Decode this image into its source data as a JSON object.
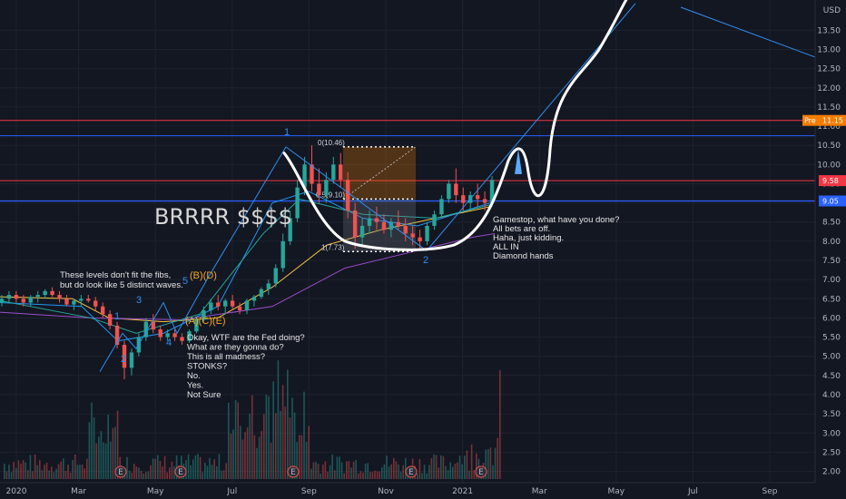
{
  "chart_data": {
    "type": "candlestick",
    "currency": "USD",
    "x_ticks": [
      "2020",
      "Mar",
      "May",
      "Jul",
      "Sep",
      "Nov",
      "2021",
      "Mar",
      "May",
      "Jul",
      "Sep"
    ],
    "y_ticks": [
      2.0,
      2.5,
      3.0,
      3.5,
      4.0,
      4.5,
      5.0,
      5.5,
      6.0,
      6.5,
      7.0,
      7.5,
      8.0,
      8.5,
      9.0,
      9.5,
      10.0,
      10.5,
      11.0,
      11.5,
      12.0,
      12.5,
      13.0,
      13.5
    ],
    "ylim": [
      1.8,
      14.1
    ],
    "price_tags": [
      {
        "label": "Pre",
        "value": "11.15",
        "color": "#f57c00"
      },
      {
        "label": "",
        "value": "9.58",
        "color": "#f23645"
      },
      {
        "label": "",
        "value": "9.05",
        "color": "#2962ff"
      }
    ],
    "horizontal_levels": [
      11.15,
      10.75,
      9.58,
      9.05
    ],
    "annotations": {
      "brrrr": "BRRRR $$$$",
      "levels_note": [
        "These levels don't fit the fibs,",
        "but do look like 5 distinct waves."
      ],
      "fed_note": [
        "Okay, WTF are the Fed doing?",
        "What are they gonna do?",
        "This is all madness?",
        "STONKS?",
        "No.",
        "Yes.",
        "Not Sure"
      ],
      "gamestop_note": [
        "Gamestop, what have you done?",
        "All bets are off.",
        "Haha, just kidding.",
        "ALL IN",
        "Diamond hands"
      ]
    },
    "wave_labels_blue": [
      {
        "text": "1",
        "x": "2020-03-25",
        "y": 6.0
      },
      {
        "text": "2",
        "x": "2020-04-05",
        "y": 5.15
      },
      {
        "text": "3",
        "x": "2020-04-25",
        "y": 6.55
      },
      {
        "text": "4",
        "x": "2020-05-20",
        "y": 5.35
      },
      {
        "text": "5",
        "x": "2020-06-05",
        "y": 7.15
      },
      {
        "text": "1",
        "x": "2020-08-10",
        "y": 10.7
      },
      {
        "text": "2",
        "x": "2020-12-10",
        "y": 7.75
      }
    ],
    "wave_labels_orange": [
      {
        "text": "(B)(D)",
        "x": "2020-06-12",
        "y": 7.3
      },
      {
        "text": "(A)(C)(E)",
        "x": "2020-06-12",
        "y": 6.0
      }
    ],
    "fib": {
      "top_label": "0(10.46)",
      "mid_label": "0.5(9.10)",
      "bottom_label": "1(7.73)",
      "top": 10.46,
      "mid": 9.1,
      "bottom": 7.73
    },
    "markers": [
      "E",
      "E",
      "E",
      "E",
      "E"
    ],
    "series": [
      {
        "kind": "ohlc",
        "values": [
          [
            6.4,
            6.6,
            6.3,
            6.5
          ],
          [
            6.5,
            6.7,
            6.4,
            6.6
          ],
          [
            6.6,
            6.7,
            6.4,
            6.5
          ],
          [
            6.5,
            6.6,
            6.3,
            6.4
          ],
          [
            6.4,
            6.6,
            6.3,
            6.55
          ],
          [
            6.55,
            6.7,
            6.4,
            6.6
          ],
          [
            6.6,
            6.75,
            6.5,
            6.7
          ],
          [
            6.7,
            6.8,
            6.55,
            6.6
          ],
          [
            6.6,
            6.7,
            6.4,
            6.5
          ],
          [
            6.5,
            6.6,
            6.3,
            6.35
          ],
          [
            6.35,
            6.5,
            6.2,
            6.45
          ],
          [
            6.45,
            6.6,
            6.3,
            6.5
          ],
          [
            6.5,
            6.6,
            6.4,
            6.45
          ],
          [
            6.45,
            6.55,
            6.2,
            6.3
          ],
          [
            6.3,
            6.4,
            6.0,
            6.1
          ],
          [
            6.1,
            6.2,
            5.7,
            5.8
          ],
          [
            5.8,
            5.9,
            5.2,
            5.3
          ],
          [
            5.3,
            5.4,
            4.4,
            4.7
          ],
          [
            4.7,
            5.2,
            4.5,
            5.1
          ],
          [
            5.1,
            5.6,
            5.0,
            5.5
          ],
          [
            5.5,
            6.0,
            5.4,
            5.9
          ],
          [
            5.9,
            6.1,
            5.6,
            5.7
          ],
          [
            5.7,
            5.8,
            5.4,
            5.5
          ],
          [
            5.5,
            5.7,
            5.4,
            5.6
          ],
          [
            5.6,
            5.7,
            5.4,
            5.5
          ],
          [
            5.5,
            5.6,
            5.3,
            5.4
          ],
          [
            5.4,
            5.7,
            5.35,
            5.65
          ],
          [
            5.65,
            6.0,
            5.6,
            5.95
          ],
          [
            5.95,
            6.3,
            5.9,
            6.2
          ],
          [
            6.2,
            6.5,
            6.1,
            6.4
          ],
          [
            6.4,
            6.6,
            6.2,
            6.3
          ],
          [
            6.3,
            6.5,
            6.1,
            6.45
          ],
          [
            6.45,
            6.6,
            6.2,
            6.3
          ],
          [
            6.3,
            6.4,
            6.1,
            6.2
          ],
          [
            6.2,
            6.5,
            6.1,
            6.45
          ],
          [
            6.45,
            6.6,
            6.3,
            6.55
          ],
          [
            6.55,
            6.8,
            6.5,
            6.75
          ],
          [
            6.75,
            7.0,
            6.6,
            6.9
          ],
          [
            6.9,
            7.4,
            6.8,
            7.3
          ],
          [
            7.3,
            8.2,
            7.2,
            8.0
          ],
          [
            8.0,
            8.8,
            7.9,
            8.6
          ],
          [
            8.6,
            9.6,
            8.5,
            9.4
          ],
          [
            9.4,
            10.2,
            9.2,
            10.0
          ],
          [
            10.0,
            10.5,
            9.3,
            9.5
          ],
          [
            9.5,
            9.9,
            9.0,
            9.2
          ],
          [
            9.2,
            9.8,
            9.0,
            9.6
          ],
          [
            9.6,
            10.2,
            9.5,
            10.0
          ],
          [
            10.0,
            10.3,
            9.4,
            9.6
          ],
          [
            9.6,
            9.8,
            8.6,
            8.8
          ],
          [
            8.8,
            9.0,
            7.8,
            8.1
          ],
          [
            8.1,
            8.6,
            7.9,
            8.4
          ],
          [
            8.4,
            8.8,
            8.2,
            8.6
          ],
          [
            8.6,
            8.9,
            8.3,
            8.5
          ],
          [
            8.5,
            8.7,
            8.2,
            8.3
          ],
          [
            8.3,
            8.6,
            8.1,
            8.5
          ],
          [
            8.5,
            8.8,
            8.3,
            8.4
          ],
          [
            8.4,
            8.6,
            8.0,
            8.2
          ],
          [
            8.2,
            8.4,
            7.9,
            8.1
          ],
          [
            8.1,
            8.3,
            7.8,
            8.0
          ],
          [
            8.0,
            8.5,
            7.9,
            8.4
          ],
          [
            8.4,
            8.8,
            8.3,
            8.7
          ],
          [
            8.7,
            9.2,
            8.6,
            9.1
          ],
          [
            9.1,
            9.6,
            9.0,
            9.5
          ],
          [
            9.5,
            9.9,
            9.0,
            9.2
          ],
          [
            9.2,
            9.4,
            8.8,
            9.0
          ],
          [
            9.0,
            9.3,
            8.8,
            9.2
          ],
          [
            9.2,
            9.5,
            8.9,
            9.1
          ],
          [
            9.1,
            9.3,
            8.8,
            9.0
          ],
          [
            9.0,
            9.7,
            8.9,
            9.6
          ]
        ]
      }
    ]
  }
}
